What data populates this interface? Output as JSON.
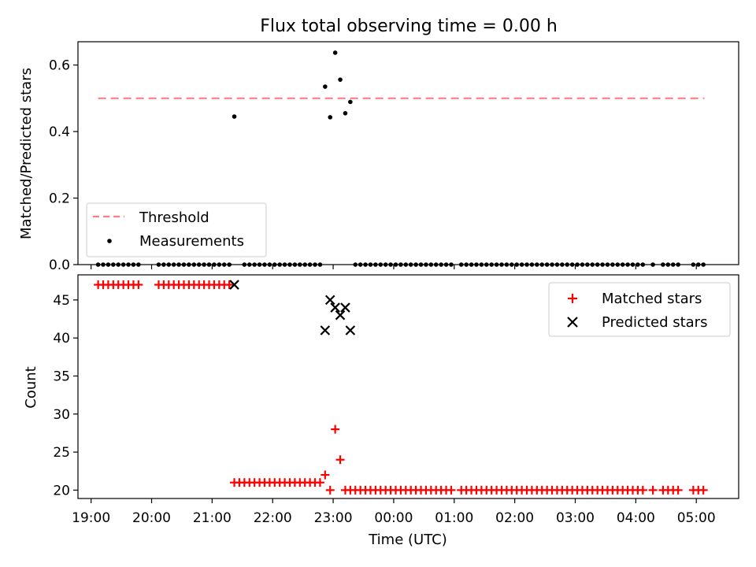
{
  "title": "Flux total observing time = 0.00 h",
  "chart_data": [
    {
      "type": "scatter",
      "panel": "top",
      "ylabel": "Matched/Predicted stars",
      "ylim": [
        0.0,
        0.67
      ],
      "yticks": [
        0.0,
        0.2,
        0.4,
        0.6
      ],
      "ytick_labels": [
        "0.0",
        "0.2",
        "0.4",
        "0.6"
      ],
      "legend_placement": "lower-left",
      "threshold": {
        "name": "Threshold",
        "value": 0.5,
        "x_start": "19:07",
        "x_end": "05:08",
        "color": "#ff7f7f"
      },
      "measurements": {
        "name": "Measurements",
        "color": "#000000",
        "points": [
          [
            "21:22",
            0.445
          ],
          [
            "22:52",
            0.535
          ],
          [
            "22:57",
            0.443
          ],
          [
            "23:02",
            0.637
          ],
          [
            "23:07",
            0.556
          ],
          [
            "23:12",
            0.455
          ],
          [
            "23:17",
            0.489
          ]
        ],
        "zero_points": [
          [
            "19:07",
            "19:47",
            5
          ],
          [
            "20:07",
            "21:17",
            5
          ],
          [
            "21:32",
            "22:47",
            5
          ],
          [
            "23:22",
            "00:57",
            5
          ],
          [
            "01:07",
            "02:07",
            5
          ],
          [
            "02:12",
            "04:07",
            5
          ],
          [
            "04:17",
            "04:17",
            5
          ],
          [
            "04:27",
            "04:42",
            5
          ],
          [
            "04:57",
            "05:08",
            5
          ]
        ]
      }
    },
    {
      "type": "scatter",
      "panel": "bottom",
      "xlabel": "Time (UTC)",
      "ylabel": "Count",
      "ylim": [
        18.9,
        48.3
      ],
      "yticks": [
        20,
        25,
        30,
        35,
        40,
        45
      ],
      "ytick_labels": [
        "20",
        "25",
        "30",
        "35",
        "40",
        "45"
      ],
      "xticks": [
        "19:00",
        "20:00",
        "21:00",
        "22:00",
        "23:00",
        "00:00",
        "01:00",
        "02:00",
        "03:00",
        "04:00",
        "05:00"
      ],
      "xlim": [
        "18:47",
        "05:42"
      ],
      "legend_placement": "top-right",
      "series": [
        {
          "name": "Matched stars",
          "marker": "plus",
          "color": "#ff0000",
          "runs": [
            [
              "19:07",
              "19:47",
              5,
              47
            ],
            [
              "20:07",
              "21:17",
              5,
              47
            ],
            [
              "21:22",
              "22:47",
              5,
              21
            ],
            [
              "23:22",
              "00:57",
              5,
              20
            ],
            [
              "01:07",
              "02:07",
              5,
              20
            ],
            [
              "02:12",
              "04:07",
              5,
              20
            ],
            [
              "04:17",
              "04:17",
              5,
              20
            ],
            [
              "04:27",
              "04:42",
              5,
              20
            ],
            [
              "04:57",
              "05:08",
              5,
              20
            ]
          ],
          "points": [
            [
              "22:52",
              22
            ],
            [
              "22:57",
              20
            ],
            [
              "23:02",
              28
            ],
            [
              "23:07",
              24
            ],
            [
              "23:12",
              20
            ],
            [
              "23:17",
              20
            ]
          ]
        },
        {
          "name": "Predicted stars",
          "marker": "x",
          "color": "#000000",
          "points": [
            [
              "21:22",
              47
            ],
            [
              "22:52",
              41
            ],
            [
              "22:57",
              45
            ],
            [
              "23:02",
              44
            ],
            [
              "23:07",
              43
            ],
            [
              "23:12",
              44
            ],
            [
              "23:17",
              41
            ]
          ]
        }
      ]
    }
  ]
}
